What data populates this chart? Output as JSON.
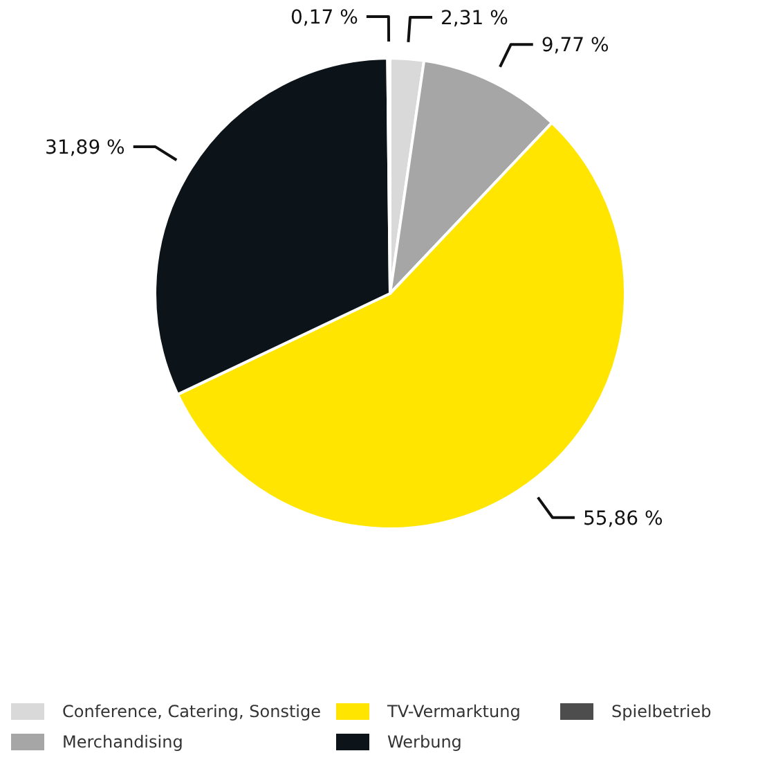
{
  "chart_data": {
    "type": "pie",
    "categories": [
      "Conference, Catering, Sonstige",
      "Merchandising",
      "TV-Vermarktung",
      "Werbung",
      "Spielbetrieb"
    ],
    "values": [
      2.31,
      9.77,
      55.86,
      31.89,
      0.17
    ],
    "colors": [
      "#d9d9d9",
      "#a6a6a6",
      "#ffe500",
      "#0d1419",
      "#4d4d4d"
    ],
    "value_labels": [
      "2,31 %",
      "9,77 %",
      "55,86 %",
      "31,89 %",
      "0,17 %"
    ],
    "legend": "bottom"
  }
}
